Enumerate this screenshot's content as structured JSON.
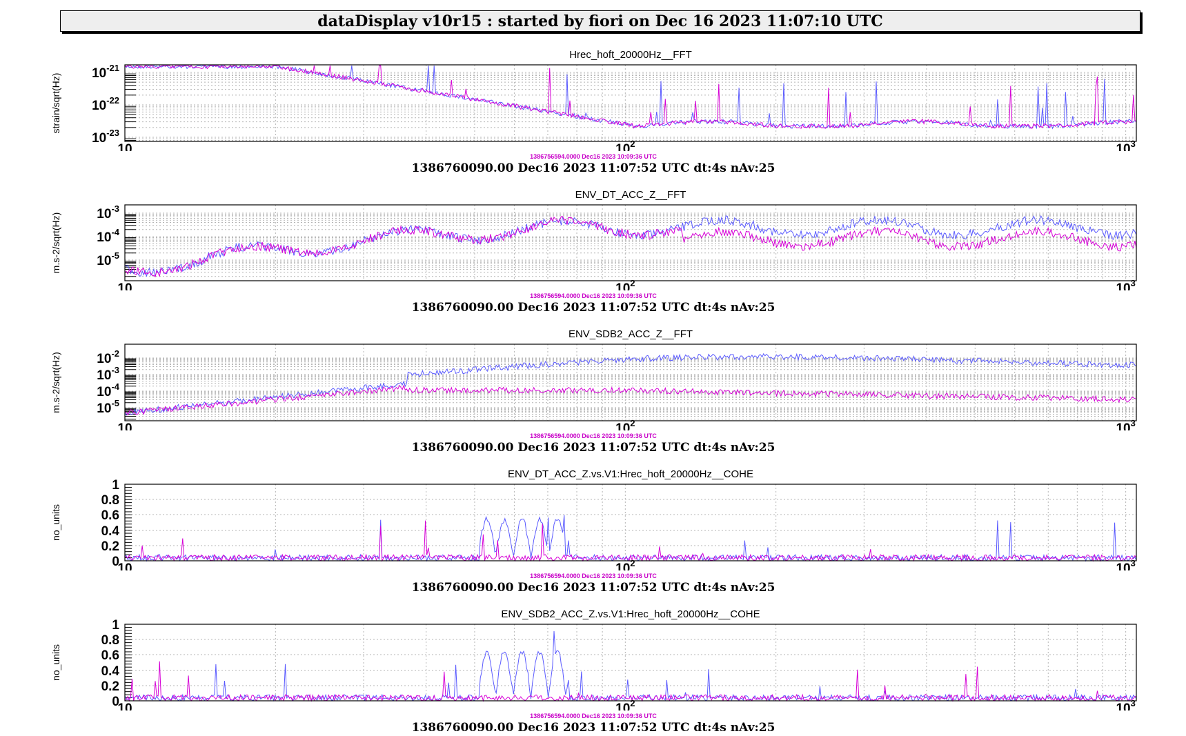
{
  "header": {
    "title": "dataDisplay v10r15 : started by fiori on Dec 16 2023 11:07:10 UTC"
  },
  "colors": {
    "series_a": "#5a5aff",
    "series_b": "#d600d6",
    "grid": "#b4b4b4"
  },
  "chart_data": [
    {
      "type": "line",
      "title": "Hrec_hoft_20000Hz__FFT",
      "ylabel": "strain/sqrt(Hz)",
      "yscale": "log",
      "ytick_labels": [
        {
          "base": "10",
          "exp": "-21"
        },
        {
          "base": "10",
          "exp": "-22"
        },
        {
          "base": "10",
          "exp": "-23"
        }
      ],
      "xscale": "log",
      "xlim": [
        10,
        1050
      ],
      "xtick_labels": [
        {
          "base": "10",
          "exp": ""
        },
        {
          "base": "10",
          "exp": "2"
        },
        {
          "base": "10",
          "exp": "3"
        }
      ],
      "grid": true,
      "stamp": "1386756594.0000 Dec16 2023 10:09:36 UTC",
      "info": "1386760090.00 Dec16 2023 11:07:52 UTC dt:4s nAv:25"
    },
    {
      "type": "line",
      "title": "ENV_DT_ACC_Z__FFT",
      "ylabel": "m.s-2/sqrt(Hz)",
      "yscale": "log",
      "ytick_labels": [
        {
          "base": "10",
          "exp": "-3"
        },
        {
          "base": "10",
          "exp": "-4"
        },
        {
          "base": "10",
          "exp": "-5"
        }
      ],
      "xscale": "log",
      "xlim": [
        10,
        1050
      ],
      "xtick_labels": [
        {
          "base": "10",
          "exp": ""
        },
        {
          "base": "10",
          "exp": "2"
        },
        {
          "base": "10",
          "exp": "3"
        }
      ],
      "grid": true,
      "stamp": "1386756594.0000 Dec16 2023 10:09:36 UTC",
      "info": "1386760090.00 Dec16 2023 11:07:52 UTC dt:4s nAv:25"
    },
    {
      "type": "line",
      "title": "ENV_SDB2_ACC_Z__FFT",
      "ylabel": "m.s-2/sqrt(Hz)",
      "yscale": "log",
      "ytick_labels": [
        {
          "base": "10",
          "exp": "-2"
        },
        {
          "base": "10",
          "exp": "-3"
        },
        {
          "base": "10",
          "exp": "-4"
        },
        {
          "base": "10",
          "exp": "-5"
        }
      ],
      "xscale": "log",
      "xlim": [
        10,
        1050
      ],
      "xtick_labels": [
        {
          "base": "10",
          "exp": ""
        },
        {
          "base": "10",
          "exp": "2"
        },
        {
          "base": "10",
          "exp": "3"
        }
      ],
      "grid": true,
      "stamp": "1386756594.0000 Dec16 2023 10:09:36 UTC",
      "info": "1386760090.00 Dec16 2023 11:07:52 UTC dt:4s nAv:25"
    },
    {
      "type": "line",
      "title": "ENV_DT_ACC_Z.vs.V1:Hrec_hoft_20000Hz__COHE",
      "ylabel": "no_units",
      "yscale": "linear",
      "ylim": [
        0,
        1
      ],
      "ytick_labels": [
        "1",
        "0.8",
        "0.6",
        "0.4",
        "0.2",
        "0"
      ],
      "xscale": "log",
      "xlim": [
        10,
        1050
      ],
      "xtick_labels": [
        {
          "base": "10",
          "exp": ""
        },
        {
          "base": "10",
          "exp": "2"
        },
        {
          "base": "10",
          "exp": "3"
        }
      ],
      "grid": true,
      "stamp": "1386756594.0000 Dec16 2023 10:09:36 UTC",
      "info": "1386760090.00 Dec16 2023 11:07:52 UTC dt:4s nAv:25"
    },
    {
      "type": "line",
      "title": "ENV_SDB2_ACC_Z.vs.V1:Hrec_hoft_20000Hz__COHE",
      "ylabel": "no_units",
      "yscale": "linear",
      "ylim": [
        0,
        1
      ],
      "ytick_labels": [
        "1",
        "0.8",
        "0.6",
        "0.4",
        "0.2",
        "0"
      ],
      "xscale": "log",
      "xlim": [
        10,
        1050
      ],
      "xtick_labels": [
        {
          "base": "10",
          "exp": ""
        },
        {
          "base": "10",
          "exp": "2"
        },
        {
          "base": "10",
          "exp": "3"
        }
      ],
      "grid": true,
      "stamp": "1386756594.0000 Dec16 2023 10:09:36 UTC",
      "info": "1386760090.00 Dec16 2023 11:07:52 UTC dt:4s nAv:25"
    }
  ]
}
